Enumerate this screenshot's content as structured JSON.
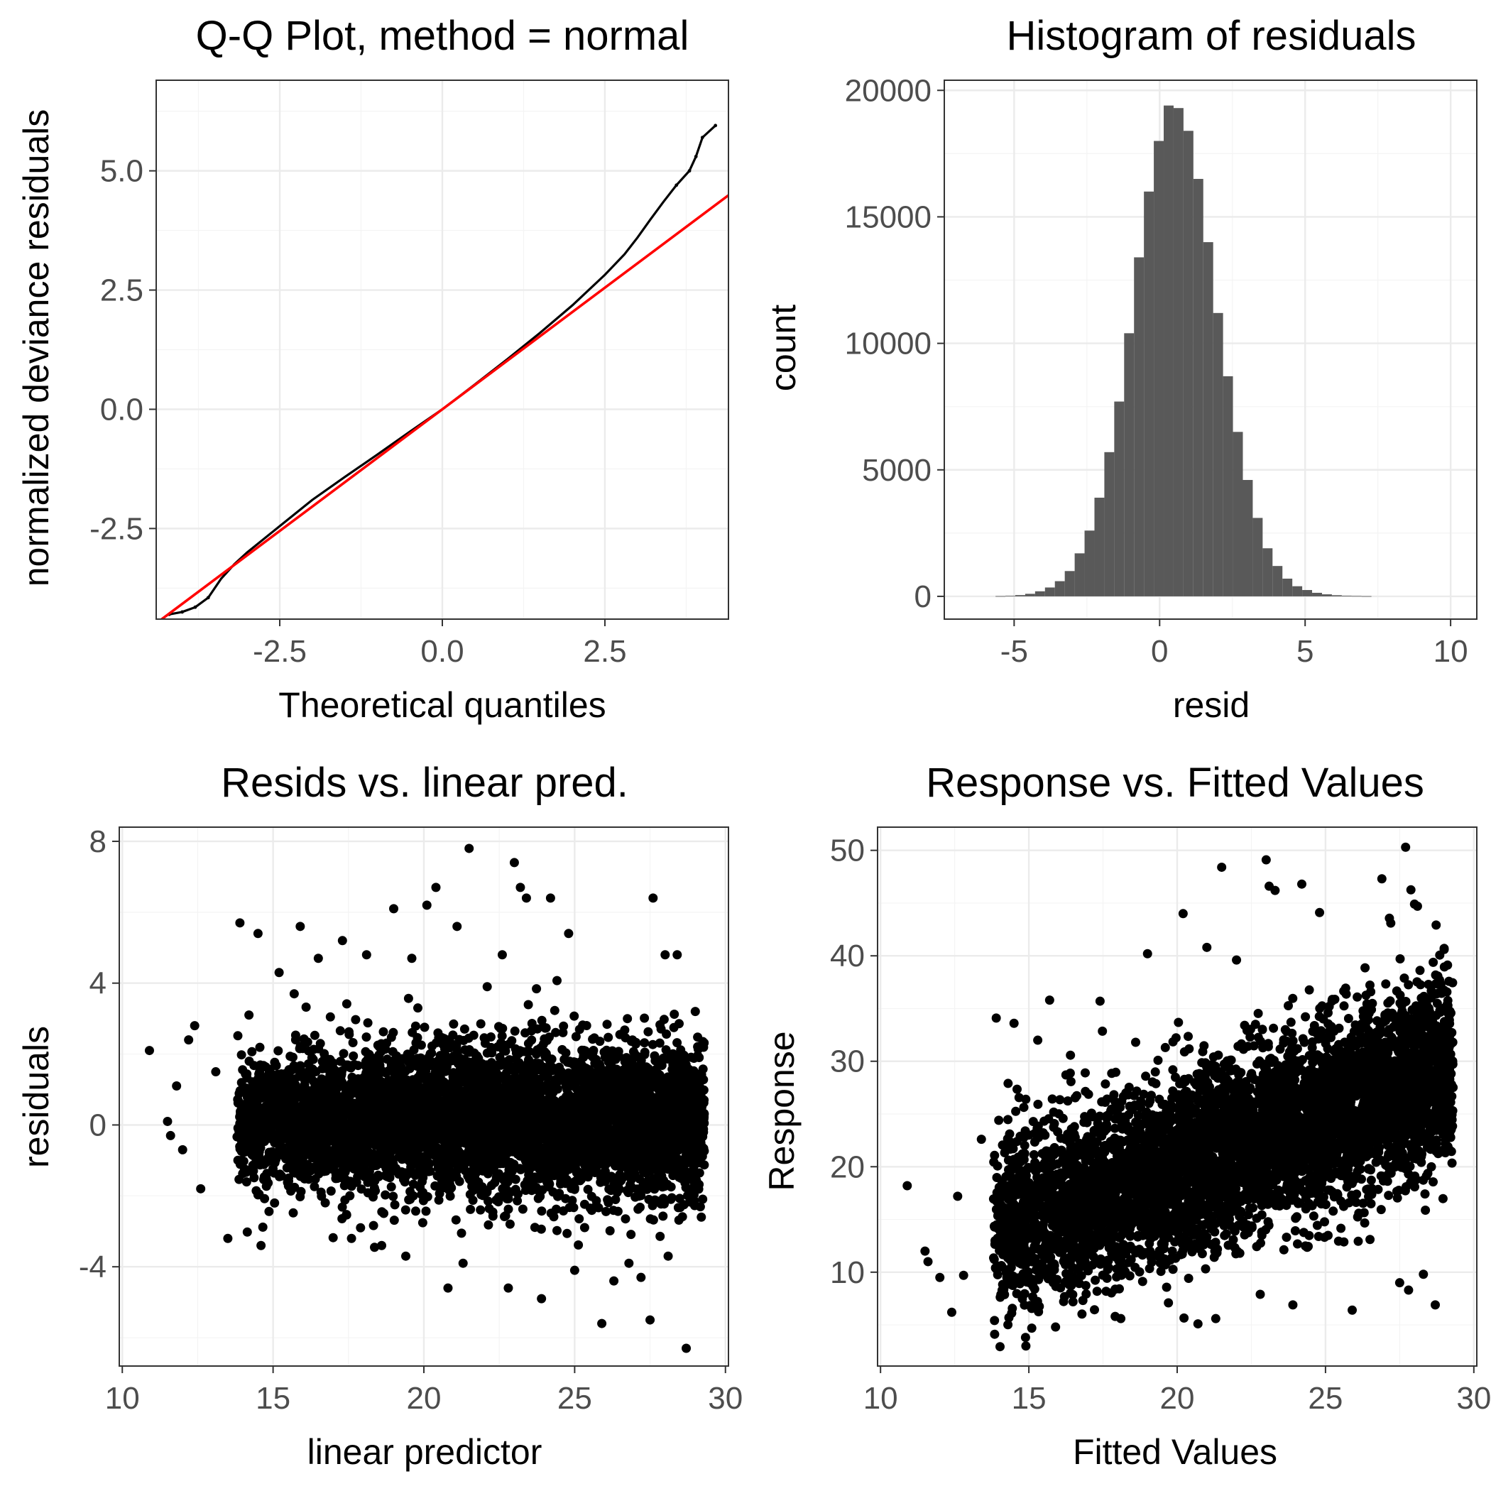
{
  "chart_data": [
    {
      "type": "scatter",
      "title": "Q-Q Plot, method = normal",
      "xlabel": "Theoretical quantiles",
      "ylabel": "normalized deviance residuals",
      "xlim": [
        -4.4,
        4.4
      ],
      "ylim": [
        -4.4,
        6.9
      ],
      "xticks": [
        -2.5,
        0,
        2.5
      ],
      "xtick_labels": [
        "-2.5",
        "0.0",
        "2.5"
      ],
      "yticks": [
        -2.5,
        0,
        2.5,
        5
      ],
      "ytick_labels": [
        "-2.5",
        "0.0",
        "2.5",
        "5.0"
      ],
      "grid": true,
      "colors": {
        "points": "#000000",
        "reference_line": "#ff0000"
      },
      "reference_line": {
        "slope": 1.02,
        "intercept": 0.0
      },
      "series": [
        {
          "type": "line",
          "x": [
            -4.2,
            -4.0,
            -3.8,
            -3.6,
            -3.4,
            -3.2,
            -3.0,
            -2.5,
            -2.0,
            -1.5,
            -1.0,
            -0.5,
            0.0,
            0.5,
            1.0,
            1.5,
            2.0,
            2.5,
            2.8,
            3.0,
            3.2,
            3.4,
            3.6,
            3.8,
            3.9,
            4.0,
            4.2
          ],
          "y": [
            -4.3,
            -4.25,
            -4.15,
            -3.95,
            -3.55,
            -3.25,
            -3.0,
            -2.45,
            -1.9,
            -1.42,
            -0.95,
            -0.47,
            0.0,
            0.52,
            1.05,
            1.6,
            2.18,
            2.82,
            3.25,
            3.6,
            3.98,
            4.35,
            4.7,
            5.0,
            5.3,
            5.7,
            5.95
          ]
        }
      ]
    },
    {
      "type": "bar",
      "title": "Histogram of residuals",
      "xlabel": "resid",
      "ylabel": "count",
      "xlim": [
        -7.4,
        10.9
      ],
      "ylim": [
        -900,
        20400
      ],
      "xticks": [
        -5,
        0,
        5,
        10
      ],
      "xtick_labels": [
        "-5",
        "0",
        "5",
        "10"
      ],
      "yticks": [
        0,
        5000,
        10000,
        15000,
        20000
      ],
      "ytick_labels": [
        "0",
        "5000",
        "10000",
        "15000",
        "20000"
      ],
      "grid": true,
      "colors": {
        "bars": "#595959"
      },
      "bin_width": 0.34,
      "bin_left_edges": [
        -5.64,
        -5.3,
        -4.96,
        -4.62,
        -4.28,
        -3.94,
        -3.6,
        -3.26,
        -2.92,
        -2.58,
        -2.24,
        -1.9,
        -1.56,
        -1.22,
        -0.88,
        -0.54,
        -0.2,
        0.14,
        0.48,
        0.82,
        1.16,
        1.5,
        1.84,
        2.18,
        2.52,
        2.86,
        3.2,
        3.54,
        3.88,
        4.22,
        4.56,
        4.9,
        5.24,
        5.58,
        5.92,
        6.26,
        6.6,
        6.94
      ],
      "values": [
        10,
        20,
        50,
        100,
        200,
        350,
        600,
        1000,
        1700,
        2600,
        3900,
        5700,
        7700,
        10400,
        13400,
        16000,
        18000,
        19400,
        19300,
        18400,
        16500,
        14000,
        11200,
        8700,
        6500,
        4600,
        3100,
        1900,
        1200,
        700,
        400,
        250,
        140,
        80,
        45,
        25,
        15,
        8
      ]
    },
    {
      "type": "scatter",
      "title": "Resids vs. linear pred.",
      "xlabel": "linear predictor",
      "ylabel": "residuals",
      "xlim": [
        9.9,
        30.1
      ],
      "ylim": [
        -6.8,
        8.4
      ],
      "xticks": [
        10,
        15,
        20,
        25,
        30
      ],
      "xtick_labels": [
        "10",
        "15",
        "20",
        "25",
        "30"
      ],
      "yticks": [
        -4,
        0,
        4,
        8
      ],
      "ytick_labels": [
        "-4",
        "0",
        "4",
        "8"
      ],
      "grid": true,
      "colors": {
        "points": "#000000"
      },
      "dense_cloud": {
        "x_range": [
          14.6,
          29.3
        ],
        "y_range": [
          -2.2,
          2.4
        ]
      },
      "series": [
        {
          "x": [
            10.9,
            11.5,
            11.6,
            12.0,
            12.4,
            12.6,
            13.1,
            13.9,
            14.5,
            14.6,
            15.2,
            15.7,
            17.3,
            17.6,
            18.1,
            18.6,
            19.0,
            19.4,
            19.6,
            20.1,
            20.4,
            20.8,
            21.1,
            21.3,
            21.5,
            22.1,
            22.6,
            22.8,
            23.0,
            23.2,
            23.4,
            23.9,
            24.2,
            24.8,
            25.0,
            25.9,
            26.3,
            26.8,
            27.2,
            27.5,
            27.6,
            28.0,
            28.1,
            28.4,
            28.7,
            15.9,
            16.5,
            14.2,
            13.5,
            12.2,
            11.8,
            29.2,
            29.0,
            28.9,
            17.9,
            19.8
          ],
          "y": [
            2.1,
            0.1,
            -0.3,
            -0.7,
            2.8,
            -1.8,
            1.5,
            5.7,
            5.4,
            -3.4,
            4.3,
            3.7,
            5.2,
            -3.2,
            4.8,
            -3.4,
            6.1,
            -3.7,
            4.7,
            6.2,
            6.7,
            -4.6,
            5.6,
            -3.9,
            7.8,
            3.9,
            4.8,
            -4.6,
            7.4,
            6.7,
            6.4,
            -4.9,
            6.4,
            5.4,
            -4.1,
            -5.6,
            -4.4,
            -3.9,
            -4.3,
            -5.5,
            6.4,
            4.8,
            -3.7,
            4.8,
            -6.3,
            5.6,
            4.7,
            3.1,
            -3.2,
            2.4,
            1.1,
            -2.6,
            3.2,
            -1.9,
            -2.9,
            3.3
          ]
        }
      ]
    },
    {
      "type": "scatter",
      "title": "Response vs. Fitted Values",
      "xlabel": "Fitted Values",
      "ylabel": "Response",
      "xlim": [
        9.9,
        30.1
      ],
      "ylim": [
        1.1,
        52.2
      ],
      "xticks": [
        10,
        15,
        20,
        25,
        30
      ],
      "xtick_labels": [
        "10",
        "15",
        "20",
        "25",
        "30"
      ],
      "yticks": [
        10,
        20,
        30,
        40,
        50
      ],
      "ytick_labels": [
        "10",
        "20",
        "30",
        "40",
        "50"
      ],
      "grid": true,
      "colors": {
        "points": "#000000"
      },
      "dense_cloud": {
        "x_range": [
          14.6,
          29.3
        ],
        "trend": {
          "slope": 1.0,
          "intercept": 0.0
        },
        "y_spread": 5.5
      },
      "series": [
        {
          "x": [
            10.9,
            11.5,
            11.6,
            12.0,
            12.4,
            12.6,
            13.9,
            14.5,
            14.9,
            15.3,
            15.7,
            17.4,
            18.1,
            18.6,
            19.0,
            19.6,
            20.2,
            20.7,
            21.0,
            21.3,
            21.5,
            22.0,
            22.8,
            23.0,
            23.1,
            23.3,
            23.9,
            24.2,
            24.8,
            25.0,
            25.9,
            26.1,
            26.9,
            27.2,
            27.5,
            27.7,
            28.0,
            28.1,
            28.4,
            28.7,
            28.3,
            29.0,
            27.8,
            26.5,
            14.3,
            16.9,
            15.9,
            12.8,
            13.4
          ],
          "y": [
            18.2,
            12.0,
            11.0,
            9.5,
            6.2,
            17.2,
            34.1,
            33.6,
            3.0,
            32.0,
            35.8,
            35.7,
            5.6,
            31.8,
            40.2,
            31.3,
            44.0,
            5.1,
            40.8,
            5.6,
            48.4,
            39.6,
            7.9,
            49.1,
            46.6,
            46.2,
            6.9,
            46.8,
            44.1,
            22.5,
            6.4,
            20.5,
            47.3,
            43.1,
            9.0,
            50.3,
            44.9,
            44.7,
            33.5,
            6.9,
            9.8,
            40.6,
            8.3,
            13.1,
            27.9,
            28.9,
            4.8,
            9.7,
            22.6
          ]
        }
      ]
    }
  ]
}
